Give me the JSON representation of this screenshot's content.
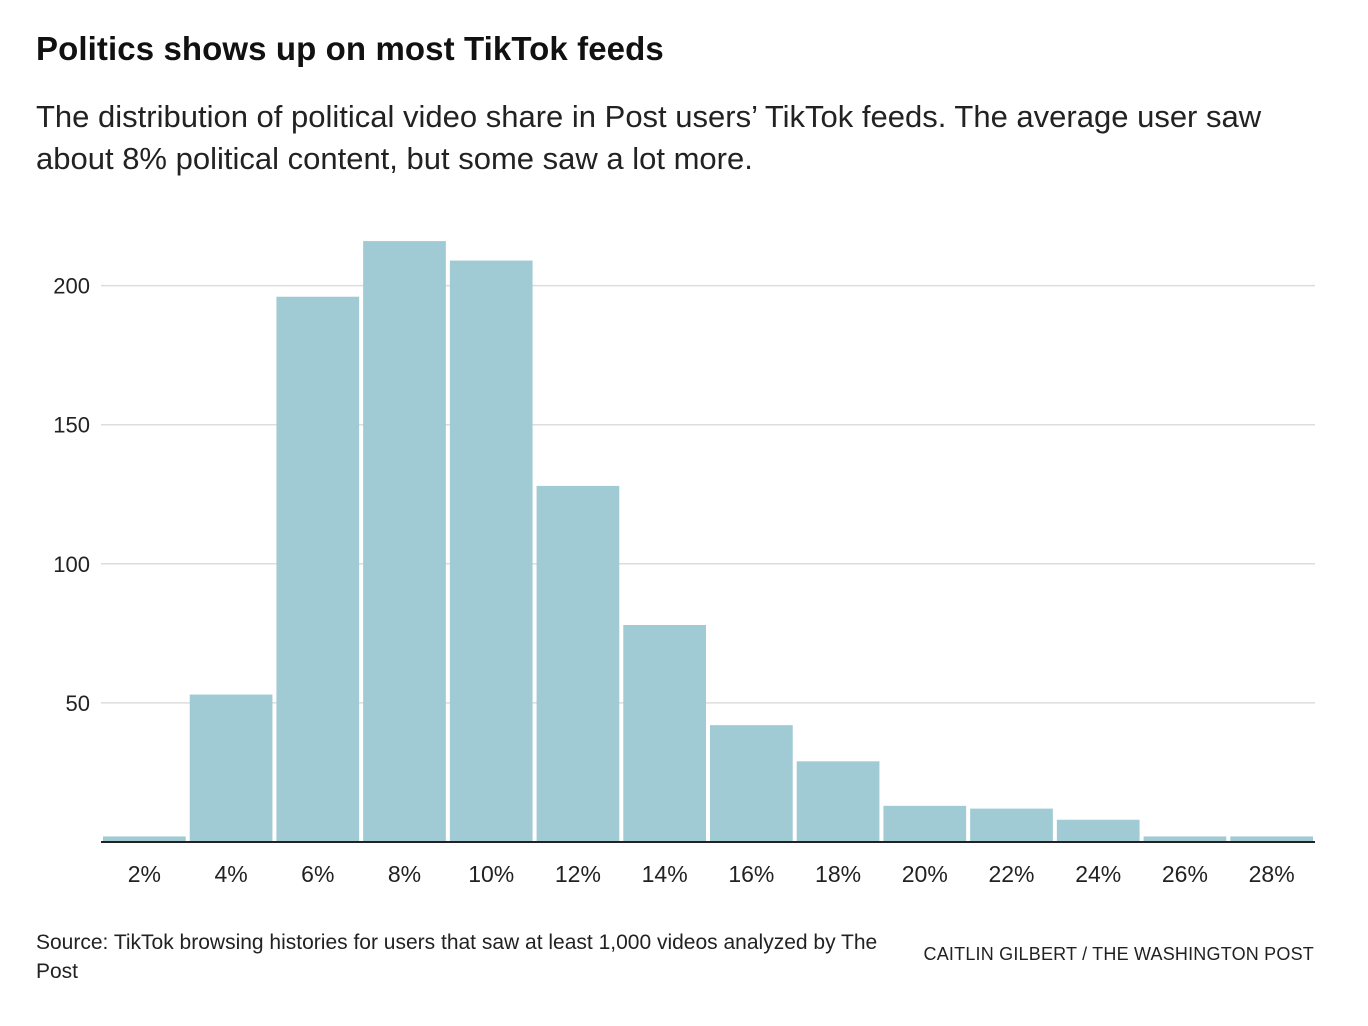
{
  "header": {
    "title": "Politics shows up on most TikTok feeds",
    "subtitle": "The distribution of political video share in Post users’ TikTok feeds. The average user saw about 8% political content, but some saw a lot more."
  },
  "footer": {
    "source": "Source: TikTok browsing histories for users that saw at least 1,000 videos analyzed by The Post",
    "credit": "CAITLIN GILBERT / THE WASHINGTON POST"
  },
  "colors": {
    "bar": "#a0cad4",
    "grid": "#dddddd",
    "axis": "#222222",
    "text": "#222222"
  },
  "chart_data": {
    "type": "bar",
    "title": "Politics shows up on most TikTok feeds",
    "xlabel": "",
    "ylabel": "",
    "categories": [
      "2%",
      "4%",
      "6%",
      "8%",
      "10%",
      "12%",
      "14%",
      "16%",
      "18%",
      "20%",
      "22%",
      "24%",
      "26%",
      "28%"
    ],
    "values": [
      2,
      53,
      196,
      216,
      209,
      128,
      78,
      42,
      29,
      13,
      12,
      8,
      2,
      2
    ],
    "yticks": [
      50,
      100,
      150,
      200
    ],
    "ylim": [
      0,
      225
    ],
    "grid": true,
    "legend": "none"
  }
}
